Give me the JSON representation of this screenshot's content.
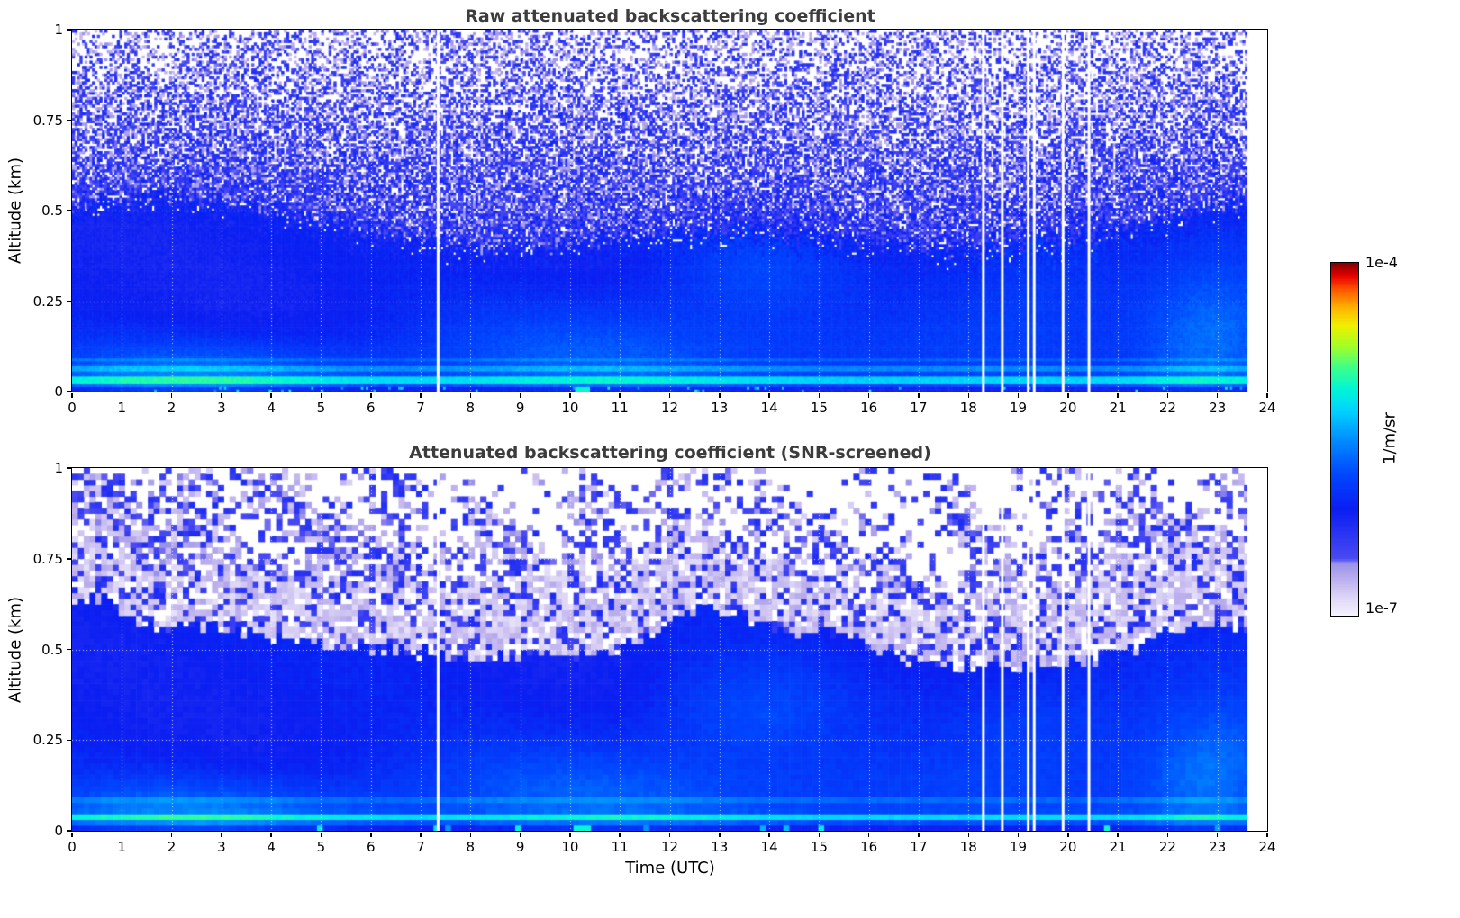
{
  "chart_data": [
    {
      "type": "heatmap",
      "id": "raw",
      "title": "Raw attenuated backscattering coefficient",
      "xlabel": "",
      "ylabel": "Altitude (km)",
      "x_range": [
        0,
        24
      ],
      "y_range": [
        0,
        1
      ],
      "x_ticks": [
        0,
        1,
        2,
        3,
        4,
        5,
        6,
        7,
        8,
        9,
        10,
        11,
        12,
        13,
        14,
        15,
        16,
        17,
        18,
        19,
        20,
        21,
        22,
        23,
        24
      ],
      "x_tick_labels": [
        "0",
        "1",
        "2",
        "3",
        "4",
        "5",
        "6",
        "7",
        "8",
        "9",
        "10",
        "11",
        "12",
        "13",
        "14",
        "15",
        "16",
        "17",
        "18",
        "19",
        "20",
        "21",
        "22",
        "23",
        "24"
      ],
      "y_ticks": [
        0,
        0.25,
        0.5,
        0.75,
        1
      ],
      "y_tick_labels": [
        "0",
        "0.25",
        "0.5",
        "0.75",
        "1"
      ],
      "grid": true,
      "value_scale": "log",
      "value_range": [
        1e-07,
        0.0001
      ],
      "data_end_time": 23.6,
      "gap_times": [
        7.35,
        18.3,
        18.68,
        19.2,
        19.32,
        19.9,
        20.42
      ],
      "description": "Dense blue field (~1e-6 1/m/sr) below a ~0.35-0.47 km boundary; heavy blue/white instrument noise speckle above; brighter cyan-blue layers below 0.1 km; sparse green specks at the surface; white columns where profiles are missing; data ends at 23.6 UTC.",
      "synthesis": {
        "seed": 1337,
        "nx": 480,
        "ny": 140,
        "clean_L": -6.12,
        "clean_noise": 0.1,
        "ground_gradient": 2.0,
        "bl_base": 0.4,
        "bl_amp1": 0.05,
        "bl_ph1": 1.1,
        "bl_amp2": 0.04,
        "bl_f2": 0.55,
        "bl_ph2": 0.5,
        "speckle_L": -6.35,
        "speckle_noise": 0.55,
        "empty_base": 0.05,
        "empty_slope": 0.62,
        "empty_max": 0.62,
        "stripes": [
          {
            "h0": 0.025,
            "h1": 0.045,
            "dL": 0.55
          },
          {
            "h0": 0.055,
            "h1": 0.068,
            "dL": 0.3
          },
          {
            "h0": 0.085,
            "h1": 0.095,
            "dL": 0.18
          }
        ],
        "blobs": [
          {
            "t": 2.5,
            "h": 0.05,
            "rt": 2.8,
            "rh": 0.07,
            "dL": 0.45
          },
          {
            "t": 10.0,
            "h": 0.1,
            "rt": 2.6,
            "rh": 0.11,
            "dL": 0.3
          },
          {
            "t": 16.0,
            "h": 0.08,
            "rt": 3.5,
            "rh": 0.1,
            "dL": 0.22
          },
          {
            "t": 22.9,
            "h": 0.15,
            "rt": 1.1,
            "rh": 0.16,
            "dL": 0.5
          },
          {
            "t": 13.6,
            "h": 0.33,
            "rt": 1.4,
            "rh": 0.1,
            "dL": 0.28
          },
          {
            "t": 19.6,
            "h": 0.3,
            "rt": 1.4,
            "rh": 0.12,
            "dL": 0.22
          }
        ],
        "green_speck_p": 0.05,
        "green_run": [
          10.12,
          10.38
        ]
      }
    },
    {
      "type": "heatmap",
      "id": "screened",
      "title": "Attenuated backscattering coefficient (SNR-screened)",
      "xlabel": "Time (UTC)",
      "ylabel": "Altitude (km)",
      "x_range": [
        0,
        24
      ],
      "y_range": [
        0,
        1
      ],
      "x_ticks": [
        0,
        1,
        2,
        3,
        4,
        5,
        6,
        7,
        8,
        9,
        10,
        11,
        12,
        13,
        14,
        15,
        16,
        17,
        18,
        19,
        20,
        21,
        22,
        23,
        24
      ],
      "x_tick_labels": [
        "0",
        "1",
        "2",
        "3",
        "4",
        "5",
        "6",
        "7",
        "8",
        "9",
        "10",
        "11",
        "12",
        "13",
        "14",
        "15",
        "16",
        "17",
        "18",
        "19",
        "20",
        "21",
        "22",
        "23",
        "24"
      ],
      "y_ticks": [
        0,
        0.25,
        0.5,
        0.75,
        1
      ],
      "y_tick_labels": [
        "0",
        "0.25",
        "0.5",
        "0.75",
        "1"
      ],
      "grid": true,
      "value_scale": "log",
      "value_range": [
        1e-07,
        0.0001
      ],
      "data_end_time": 23.6,
      "gap_times": [
        7.35,
        18.3,
        18.68,
        19.2,
        19.32,
        19.9,
        20.42
      ],
      "description": "SNR-screened version with coarse blocks: solid blue up to ~0.5 km, pale lavender speckle band ~0.5-0.75 km with white screened-out holes, scattered blue clusters above 0.75 km, bright cyan layers below 0.1 km, green surface specks, same missing-profile white columns, data ends 23.6 UTC.",
      "synthesis": {
        "seed": 777,
        "nx": 205,
        "ny": 64,
        "clean_L": -6.1,
        "clean_noise": 0.08,
        "ground_gradient": 2.0,
        "bl_base": 0.5,
        "bl_amp1": 0.04,
        "bl_ph1": 0.8,
        "bl_amp2": 0.03,
        "bl_f2": 0.5,
        "bl_ph2": 1.2,
        "band_thickness": 0.2,
        "band_empty": 0.2,
        "bl_bumps": [
          {
            "t": 12.9,
            "r": 0.9,
            "dh": 0.12
          },
          {
            "t": 15.2,
            "r": 0.7,
            "dh": 0.07
          },
          {
            "t": 22.6,
            "r": 0.9,
            "dh": 0.05
          },
          {
            "t": 0.5,
            "r": 0.5,
            "dh": 0.08
          }
        ],
        "top_clusters": [
          {
            "t": 0.8,
            "r": 1.0,
            "dp": 0.3
          },
          {
            "t": 3.6,
            "r": 1.6,
            "dp": 0.18
          },
          {
            "t": 6.4,
            "r": 1.0,
            "dp": 0.14
          },
          {
            "t": 12.6,
            "r": 1.2,
            "dp": 0.12
          },
          {
            "t": 18.5,
            "r": 1.2,
            "dp": 0.1
          },
          {
            "t": 21.6,
            "r": 1.6,
            "dp": 0.15
          }
        ],
        "stripes": [
          {
            "h0": 0.025,
            "h1": 0.045,
            "dL": 0.55
          },
          {
            "h0": 0.055,
            "h1": 0.068,
            "dL": 0.3
          },
          {
            "h0": 0.085,
            "h1": 0.095,
            "dL": 0.18
          }
        ],
        "blobs": [
          {
            "t": 2.5,
            "h": 0.05,
            "rt": 2.8,
            "rh": 0.07,
            "dL": 0.45
          },
          {
            "t": 10.0,
            "h": 0.1,
            "rt": 2.6,
            "rh": 0.11,
            "dL": 0.3
          },
          {
            "t": 16.0,
            "h": 0.08,
            "rt": 3.5,
            "rh": 0.1,
            "dL": 0.22
          },
          {
            "t": 22.9,
            "h": 0.15,
            "rt": 1.1,
            "rh": 0.16,
            "dL": 0.5
          },
          {
            "t": 13.6,
            "h": 0.33,
            "rt": 1.4,
            "rh": 0.1,
            "dL": 0.28
          },
          {
            "t": 19.6,
            "h": 0.3,
            "rt": 1.4,
            "rh": 0.12,
            "dL": 0.22
          }
        ],
        "green_speck_p": 0.05,
        "green_run": [
          10.12,
          10.38
        ]
      }
    }
  ],
  "colorbar": {
    "label": "1/m/sr",
    "max_label": "1e-4",
    "min_label": "1e-7",
    "scale": "log",
    "min": 1e-07,
    "max": 0.0001,
    "stops": [
      [
        0.0,
        "#f5f2fd"
      ],
      [
        0.05,
        "#ddd6f6"
      ],
      [
        0.1,
        "#bdb0ee"
      ],
      [
        0.145,
        "#9a92ea"
      ],
      [
        0.16,
        "#4a4af2"
      ],
      [
        0.3,
        "#0a1ef2"
      ],
      [
        0.4,
        "#0048ff"
      ],
      [
        0.5,
        "#0090ff"
      ],
      [
        0.58,
        "#00d4ff"
      ],
      [
        0.64,
        "#00f6d8"
      ],
      [
        0.7,
        "#3cff8c"
      ],
      [
        0.76,
        "#a0ff28"
      ],
      [
        0.82,
        "#f0f000"
      ],
      [
        0.87,
        "#ffb400"
      ],
      [
        0.92,
        "#ff5a00"
      ],
      [
        0.96,
        "#e80000"
      ],
      [
        1.0,
        "#800000"
      ]
    ]
  }
}
